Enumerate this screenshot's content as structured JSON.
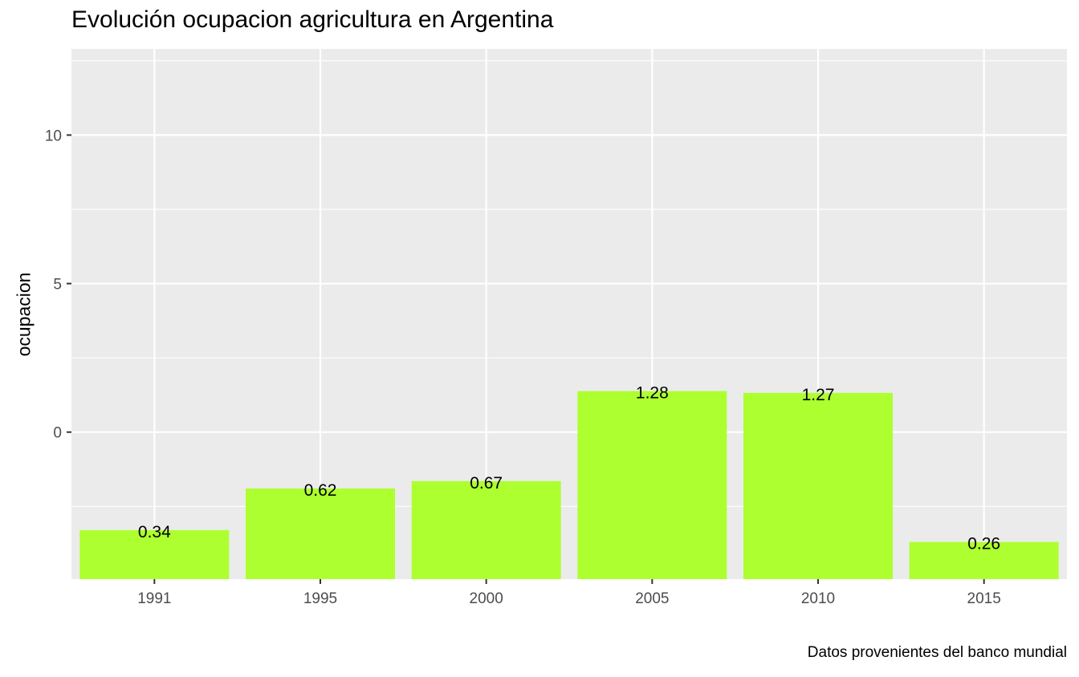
{
  "chart_data": {
    "type": "bar",
    "title": "Evolución ocupacion agricultura en Argentina",
    "xlabel": "",
    "ylabel": "ocupacion",
    "caption": "Datos provenientes del banco mundial",
    "categories": [
      "1991",
      "1995",
      "2000",
      "2005",
      "2010",
      "2015"
    ],
    "values": [
      -3.3,
      -1.9,
      -1.65,
      1.38,
      1.32,
      -3.7
    ],
    "data_labels": [
      "0.34",
      "0.62",
      "0.67",
      "1.28",
      "1.27",
      "0.26"
    ],
    "ylim": [
      -4.95,
      12.9
    ],
    "yticks": [
      0,
      5,
      10
    ],
    "ytick_labels": [
      "0",
      "5",
      "10"
    ],
    "grid": true,
    "bar_color": "#adff2f",
    "panel_background": "#ebebeb",
    "grid_color": "#ffffff"
  }
}
